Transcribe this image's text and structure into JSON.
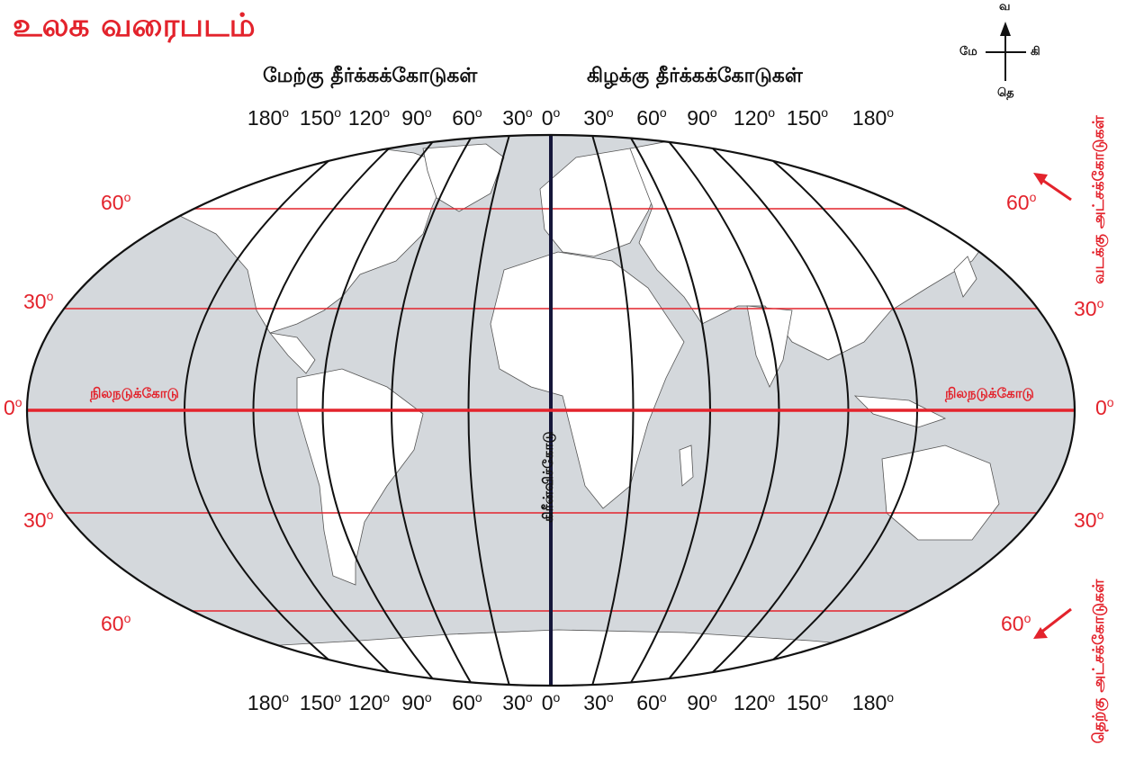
{
  "title": "உலக வரைபடம்",
  "hemisphere_labels": {
    "west": "மேற்கு தீர்க்கக்கோடுகள்",
    "east": "கிழக்கு தீர்க்கக்கோடுகள்"
  },
  "compass": {
    "north": "வ",
    "south": "தெ",
    "east": "கி",
    "west": "மே"
  },
  "longitudes": [
    "180",
    "150",
    "120",
    "90",
    "60",
    "30",
    "0",
    "30",
    "60",
    "90",
    "120",
    "150",
    "180"
  ],
  "latitudes_left": [
    "60",
    "30",
    "0",
    "30",
    "60"
  ],
  "latitudes_right": [
    "60",
    "30",
    "0",
    "30",
    "60"
  ],
  "degree_symbol": "o",
  "equator_label": "நிலநடுக்கோடு",
  "prime_meridian_label": "கிரீன்விச்கோடு",
  "north_latitudes_label": "வடக்கு அட்சக்கோடுகள்",
  "south_latitudes_label": "தெற்கு அட்சக்கோடுகள்",
  "colors": {
    "accent_red": "#e3232c",
    "ocean": "#d4d8dc",
    "land": "#ffffff",
    "meridian": "#111111"
  }
}
